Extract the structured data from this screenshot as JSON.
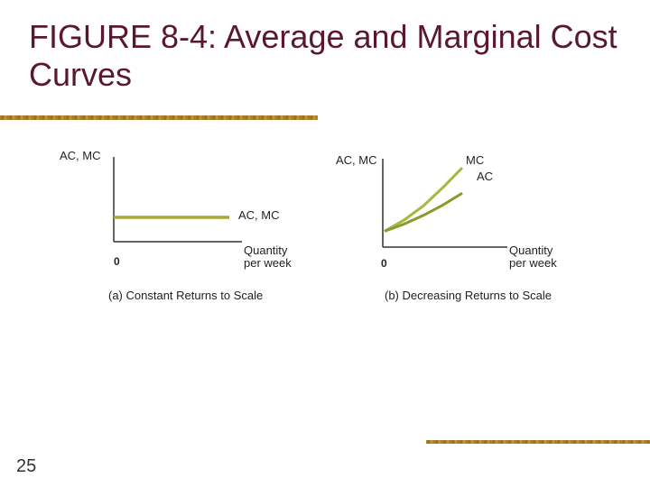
{
  "slide": {
    "title": "FIGURE 8-4: Average and Marginal Cost Curves",
    "number": "25"
  },
  "colors": {
    "title": "#5a1731",
    "accent_rule": "#b8862f",
    "curve_constant": "#a8a832",
    "curve_mc": "#a8b83c",
    "curve_ac": "#8a9a2e"
  },
  "chart_data": [
    {
      "type": "line",
      "panel": "a",
      "caption": "(a) Constant Returns to Scale",
      "ylabel": "AC, MC",
      "xlabel": "Quantity per week",
      "origin_label": "0",
      "x": [
        0,
        1
      ],
      "xlim": [
        0,
        1
      ],
      "ylim": [
        0,
        1
      ],
      "series": [
        {
          "name": "AC, MC",
          "values": [
            0.3,
            0.3
          ]
        }
      ]
    },
    {
      "type": "line",
      "panel": "b",
      "caption": "(b) Decreasing Returns to Scale",
      "ylabel": "AC, MC",
      "xlabel": "Quantity per week",
      "origin_label": "0",
      "x": [
        0,
        0.25,
        0.5,
        0.75,
        1
      ],
      "xlim": [
        0,
        1
      ],
      "ylim": [
        0,
        1
      ],
      "series": [
        {
          "name": "MC",
          "values": [
            0.2,
            0.34,
            0.52,
            0.75,
            1.0
          ]
        },
        {
          "name": "AC",
          "values": [
            0.2,
            0.29,
            0.4,
            0.53,
            0.68
          ]
        }
      ]
    }
  ]
}
